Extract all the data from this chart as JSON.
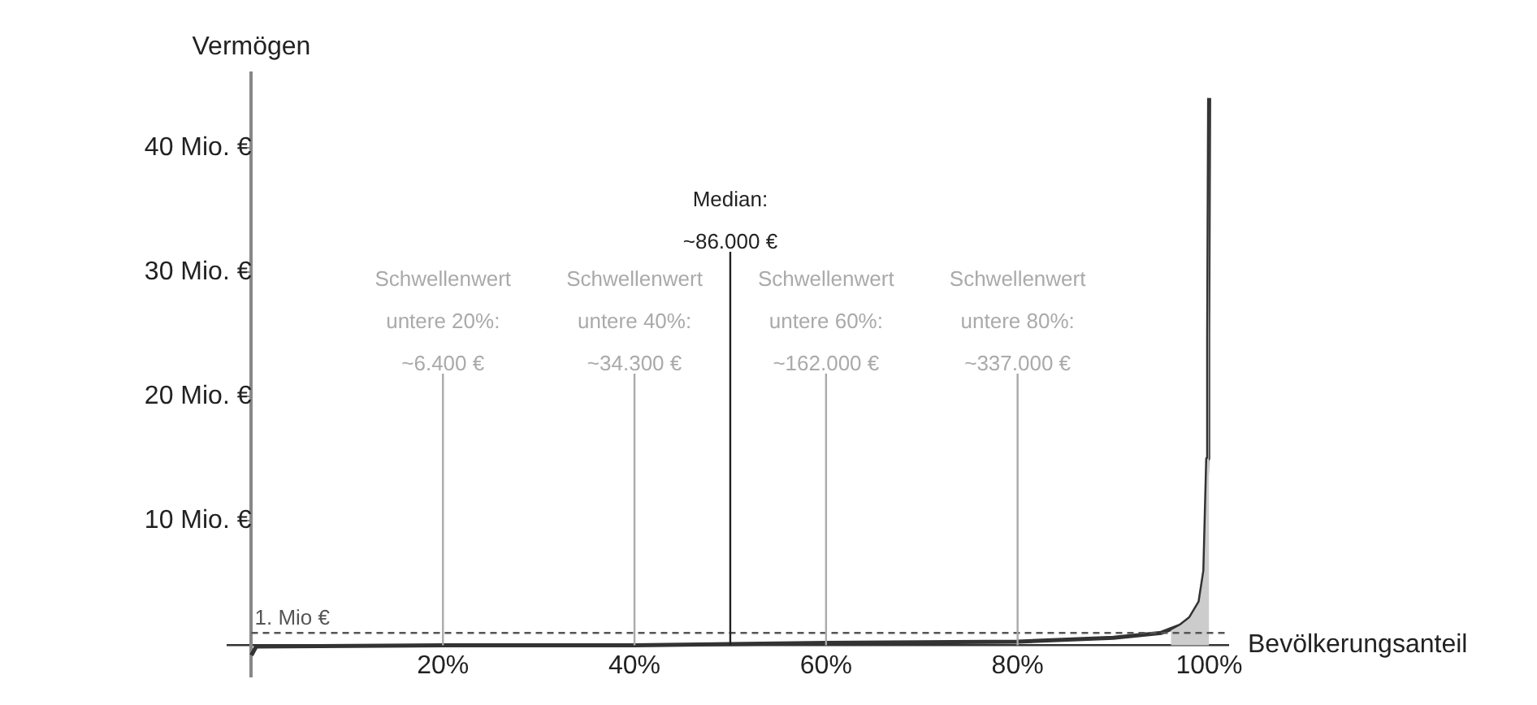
{
  "chart_data": {
    "type": "line",
    "ylabel": "Vermögen",
    "xlabel": "Bevölkerungsanteil",
    "series": [
      {
        "type": "area",
        "color": "#cccccc",
        "x": [
          96,
          97,
          98,
          99,
          99.5,
          99.8,
          99.9,
          100
        ],
        "values": [
          1.2,
          1.6,
          2.2,
          3.5,
          6,
          15,
          25,
          44
        ]
      },
      {
        "color": "#333333",
        "x": [
          0,
          0.5,
          20,
          40,
          50,
          60,
          80,
          90,
          95,
          97,
          98,
          99,
          99.5,
          99.8,
          99.9,
          100
        ],
        "values": [
          -0.8,
          -0.1,
          0,
          0,
          0.1,
          0.2,
          0.3,
          0.6,
          1.0,
          1.6,
          2.2,
          3.5,
          6,
          15,
          25,
          44
        ]
      }
    ],
    "xlim": [
      -2.5,
      102
    ],
    "ylim": [
      -2.5,
      46
    ],
    "xticks": [
      {
        "value": 20,
        "label": "20%"
      },
      {
        "value": 40,
        "label": "40%"
      },
      {
        "value": 60,
        "label": "60%"
      },
      {
        "value": 80,
        "label": "80%"
      },
      {
        "value": 100,
        "label": "100%"
      }
    ],
    "yticks": [
      {
        "value": 10,
        "label": "10 Mio. €"
      },
      {
        "value": 20,
        "label": "20 Mio. €"
      },
      {
        "value": 30,
        "label": "30 Mio. €"
      },
      {
        "value": 40,
        "label": "40 Mio. €"
      }
    ],
    "ref_lines": [
      {
        "axis": "y",
        "value": 1,
        "label": "1. Mio €",
        "color": "#555555",
        "line_style": "dashed"
      },
      {
        "axis": "x",
        "value": 20,
        "label": "Schwellenwert\nuntere 20%:\n~6.400 €",
        "color": "#aaaaaa"
      },
      {
        "axis": "x",
        "value": 40,
        "label": "Schwellenwert\nuntere 40%:\n~34.300 €",
        "color": "#aaaaaa"
      },
      {
        "axis": "x",
        "value": 50,
        "label": "Median:\n~86.000 €",
        "color": "#222222"
      },
      {
        "axis": "x",
        "value": 60,
        "label": "Schwellenwert\nuntere 60%:\n~162.000 €",
        "color": "#aaaaaa"
      },
      {
        "axis": "x",
        "value": 80,
        "label": "Schwellenwert\nuntere 80%:\n~337.000 €",
        "color": "#aaaaaa"
      }
    ],
    "grid": false,
    "legend": false,
    "marker": "none",
    "line_style": "solid"
  }
}
